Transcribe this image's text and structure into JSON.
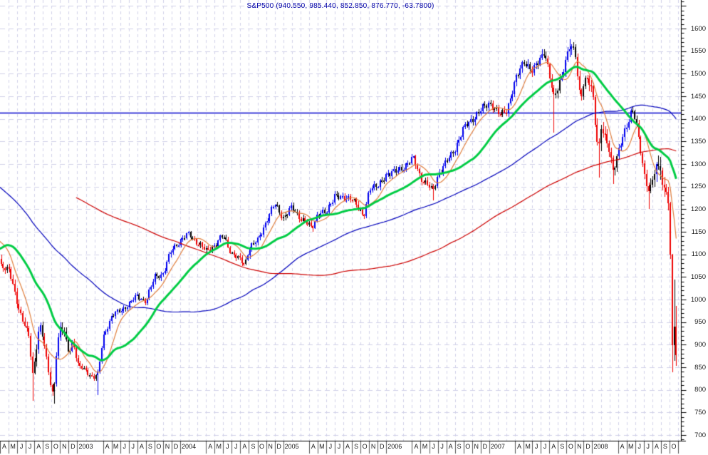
{
  "chart_data": {
    "type": "candlestick",
    "instrument": "S&P500",
    "timeframe": "weekly",
    "title": "S&P500 (940.550, 985.440, 852.850, 876.770, -63.7800)",
    "quote": {
      "open": "940.550",
      "high": "985.440",
      "low": "852.850",
      "close": "876.770",
      "change": "-63.7800"
    },
    "y_axis": {
      "min": 700,
      "max": 1600,
      "major_step": 50,
      "minor_step": 10,
      "tick_labels": [
        "1600",
        "1550",
        "1500",
        "1450",
        "1400",
        "1350",
        "1300",
        "1250",
        "1200",
        "1150",
        "1100",
        "1050",
        "1000",
        "950",
        "900",
        "850",
        "800",
        "750",
        "700"
      ]
    },
    "x_axis": {
      "start_label": "A",
      "end_label": "O",
      "labels": [
        "A",
        "M",
        "J",
        "J",
        "A",
        "S",
        "O",
        "N",
        "D",
        "2003",
        "A",
        "M",
        "J",
        "J",
        "A",
        "S",
        "O",
        "N",
        "D",
        "2004",
        "A",
        "M",
        "J",
        "J",
        "A",
        "S",
        "O",
        "N",
        "D",
        "2005",
        "A",
        "M",
        "J",
        "J",
        "A",
        "S",
        "O",
        "N",
        "D",
        "2006",
        "A",
        "M",
        "J",
        "J",
        "A",
        "S",
        "O",
        "N",
        "D",
        "2007",
        "A",
        "M",
        "J",
        "J",
        "A",
        "S",
        "O",
        "N",
        "D",
        "2008",
        "A",
        "M",
        "J",
        "J",
        "A",
        "S",
        "O"
      ]
    },
    "horizontal_line": {
      "price": 1413
    },
    "overlays": [
      {
        "name": "short-ma",
        "period": 10,
        "color": "#e07f3e",
        "width": 1.2,
        "z": 3
      },
      {
        "name": "medium-ma",
        "period": 30,
        "color": "#00cc44",
        "width": 3,
        "z": 4
      },
      {
        "name": "long-ma",
        "period": 100,
        "color": "#0000bb",
        "width": 1.2,
        "z": 1
      },
      {
        "name": "very-long-ma",
        "period": 200,
        "color": "#cc0000",
        "width": 1.2,
        "z": 2
      }
    ],
    "colors": {
      "up_candle": "#0000ee",
      "down_candle": "#000000",
      "weak_candle": "#ee0000",
      "grid": "#d0d0e8",
      "axis": "#000000",
      "label_box": "#555555",
      "title": "#0000a8",
      "hline": "#0000cc",
      "background": "#ffffff"
    },
    "anchors": [
      [
        2,
        1286
      ],
      [
        3,
        1335
      ],
      [
        4,
        1302
      ],
      [
        5,
        1373
      ],
      [
        6,
        1329
      ],
      [
        7,
        1320
      ],
      [
        8,
        1283
      ],
      [
        9,
        1363
      ],
      [
        10,
        1389
      ],
      [
        11,
        1469
      ],
      [
        12,
        1394
      ],
      [
        13,
        1366
      ],
      [
        14.4,
        1527
      ],
      [
        15,
        1452
      ],
      [
        16,
        1421
      ],
      [
        17,
        1455
      ],
      [
        18,
        1431
      ],
      [
        19.6,
        1518
      ],
      [
        20,
        1436
      ],
      [
        21,
        1429
      ],
      [
        22,
        1315
      ],
      [
        23,
        1320
      ],
      [
        24,
        1366
      ],
      [
        25,
        1240
      ],
      [
        26.2,
        1160
      ],
      [
        27,
        1249
      ],
      [
        28,
        1256
      ],
      [
        29,
        1224
      ],
      [
        30,
        1211
      ],
      [
        31,
        1134
      ],
      [
        32.6,
        970
      ],
      [
        33,
        1060
      ],
      [
        34,
        1139
      ],
      [
        35,
        1148
      ],
      [
        36,
        1130
      ],
      [
        37,
        1107
      ],
      [
        38.2,
        1170
      ],
      [
        39,
        1077
      ],
      [
        40,
        1067
      ],
      [
        41,
        990
      ],
      [
        42.3,
        920
      ],
      [
        42.8,
        830
      ],
      [
        43.3,
        905
      ],
      [
        43.6,
        950
      ],
      [
        44,
        916
      ],
      [
        44.8,
        815
      ],
      [
        45.2,
        785
      ],
      [
        45.6,
        900
      ],
      [
        46,
        936
      ],
      [
        46.4,
        930
      ],
      [
        47,
        880
      ],
      [
        47.5,
        910
      ],
      [
        48,
        856
      ],
      [
        49,
        841
      ],
      [
        49.8,
        828
      ],
      [
        50.4,
        835
      ],
      [
        51,
        917
      ],
      [
        52,
        964
      ],
      [
        53,
        975
      ],
      [
        54,
        990
      ],
      [
        55,
        1008
      ],
      [
        56,
        996
      ],
      [
        57,
        1051
      ],
      [
        58,
        1058
      ],
      [
        59,
        1112
      ],
      [
        60,
        1131
      ],
      [
        61,
        1145
      ],
      [
        62,
        1126
      ],
      [
        63,
        1107
      ],
      [
        64,
        1121
      ],
      [
        65,
        1141
      ],
      [
        66,
        1102
      ],
      [
        67.5,
        1078
      ],
      [
        68,
        1115
      ],
      [
        69,
        1130
      ],
      [
        70,
        1174
      ],
      [
        71,
        1212
      ],
      [
        72,
        1181
      ],
      [
        73,
        1204
      ],
      [
        74,
        1181
      ],
      [
        75.3,
        1157
      ],
      [
        76,
        1192
      ],
      [
        77,
        1191
      ],
      [
        78,
        1234
      ],
      [
        79,
        1220
      ],
      [
        80,
        1229
      ],
      [
        81.3,
        1178
      ],
      [
        82,
        1249
      ],
      [
        83,
        1248
      ],
      [
        84,
        1280
      ],
      [
        85,
        1281
      ],
      [
        86,
        1295
      ],
      [
        87.2,
        1311
      ],
      [
        88,
        1270
      ],
      [
        89.4,
        1240
      ],
      [
        90,
        1277
      ],
      [
        91,
        1304
      ],
      [
        92,
        1336
      ],
      [
        93,
        1378
      ],
      [
        94,
        1401
      ],
      [
        95,
        1418
      ],
      [
        96,
        1438
      ],
      [
        97.2,
        1407
      ],
      [
        98,
        1421
      ],
      [
        99,
        1482
      ],
      [
        100,
        1531
      ],
      [
        101,
        1503
      ],
      [
        102.4,
        1553
      ],
      [
        103.5,
        1445
      ],
      [
        104,
        1474
      ],
      [
        104.9,
        1527
      ],
      [
        105.4,
        1561
      ],
      [
        106,
        1549
      ],
      [
        106.6,
        1440
      ],
      [
        107,
        1481
      ],
      [
        107.5,
        1484
      ],
      [
        108,
        1468
      ],
      [
        108.3,
        1401
      ],
      [
        108.7,
        1325
      ],
      [
        109,
        1379
      ],
      [
        110,
        1331
      ],
      [
        110.4,
        1288
      ],
      [
        111,
        1323
      ],
      [
        112,
        1386
      ],
      [
        112.6,
        1426
      ],
      [
        113,
        1400
      ],
      [
        114,
        1280
      ],
      [
        114.6,
        1239
      ],
      [
        115,
        1267
      ],
      [
        115.6,
        1298
      ],
      [
        116,
        1283
      ],
      [
        116.2,
        1242
      ],
      [
        116.5,
        1252
      ],
      [
        116.8,
        1213
      ]
    ],
    "extreme_wicks": [
      {
        "m": 42.8,
        "low": 776
      },
      {
        "m": 45.2,
        "low": 769
      },
      {
        "m": 50.4,
        "low": 789
      },
      {
        "m": 89.4,
        "low": 1219
      },
      {
        "m": 103.5,
        "low": 1370
      },
      {
        "m": 105.4,
        "high": 1576
      },
      {
        "m": 108.7,
        "low": 1270
      },
      {
        "m": 110.4,
        "low": 1256
      },
      {
        "m": 114.6,
        "low": 1200
      }
    ],
    "final_bars": [
      {
        "close": 1099,
        "high": 1216,
        "low": 1090
      },
      {
        "close": 899,
        "high": 1101,
        "low": 839
      },
      {
        "close": 940.55,
        "high": 1044,
        "low": 865
      },
      {
        "close": 876.77,
        "high": 985.44,
        "low": 852.85
      }
    ]
  }
}
